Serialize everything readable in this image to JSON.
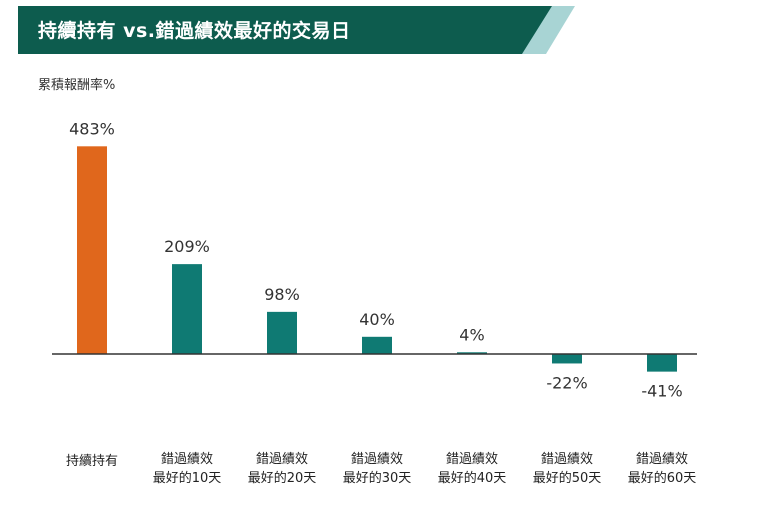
{
  "title": "持續持有 vs.錯過績效最好的交易日",
  "ylabel": "累積報酬率%",
  "colors": {
    "header_bg": "#0d5c4e",
    "header_accent": "#a8d4d4",
    "highlight_bar": "#e0671c",
    "bar": "#0f7a73",
    "axis": "#333333"
  },
  "chart_data": {
    "type": "bar",
    "title": "持續持有 vs.錯過績效最好的交易日",
    "xlabel": "",
    "ylabel": "累積報酬率%",
    "categories": [
      [
        "持續持有"
      ],
      [
        "錯過績效",
        "最好的10天"
      ],
      [
        "錯過績效",
        "最好的20天"
      ],
      [
        "錯過績效",
        "最好的30天"
      ],
      [
        "錯過績效",
        "最好的40天"
      ],
      [
        "錯過績效",
        "最好的50天"
      ],
      [
        "錯過績效",
        "最好的60天"
      ]
    ],
    "values": [
      483,
      209,
      98,
      40,
      4,
      -22,
      -41
    ],
    "value_labels": [
      "483%",
      "209%",
      "98%",
      "40%",
      "4%",
      "-22%",
      "-41%"
    ],
    "highlight_index": 0,
    "ylim": [
      -60,
      500
    ],
    "grid": false,
    "legend": "none"
  }
}
